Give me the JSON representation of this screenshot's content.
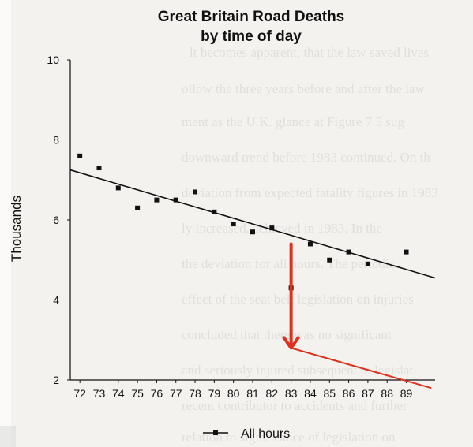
{
  "chart_data": {
    "type": "scatter",
    "title": [
      "Great Britain Road Deaths",
      "by time of day"
    ],
    "ylabel": "Thousands",
    "xlabel": "",
    "x_ticks": [
      "72",
      "73",
      "74",
      "75",
      "76",
      "77",
      "78",
      "79",
      "80",
      "81",
      "82",
      "83",
      "84",
      "85",
      "86",
      "87",
      "88",
      "89"
    ],
    "y_ticks": [
      "2",
      "4",
      "6",
      "8",
      "10"
    ],
    "xlim": [
      71.5,
      90.5
    ],
    "ylim": [
      2,
      10
    ],
    "series": [
      {
        "name": "All hours",
        "x": [
          72,
          73,
          74,
          75,
          76,
          77,
          78,
          79,
          80,
          81,
          82,
          83,
          84,
          85,
          86,
          87,
          89
        ],
        "y": [
          7.6,
          7.3,
          6.8,
          6.3,
          6.5,
          6.5,
          6.7,
          6.2,
          5.9,
          5.7,
          5.8,
          4.3,
          5.4,
          5.0,
          5.2,
          4.9,
          5.2
        ]
      }
    ],
    "trend_line": {
      "x": [
        71.5,
        90.5
      ],
      "y": [
        7.25,
        4.55
      ]
    },
    "annotation_arrow": {
      "color": "#e0301e",
      "from": {
        "x": 83,
        "y": 5.4
      },
      "to": {
        "x": 83,
        "y": 2.8
      },
      "continuation_to": {
        "x": 90.3,
        "y": 1.8
      }
    },
    "legend": {
      "position": "bottom",
      "label": "All hours"
    },
    "grid": false,
    "colors": {
      "points": "#111111",
      "trend": "#111111",
      "annotation": "#e0301e"
    }
  }
}
